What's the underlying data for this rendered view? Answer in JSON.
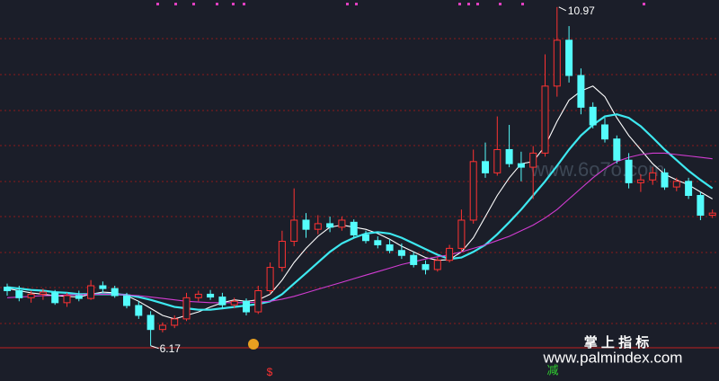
{
  "chart_data": {
    "type": "candlestick",
    "ylim": [
      5.67,
      11.07
    ],
    "up_color": "#ff3232",
    "down_color": "#54fcfc",
    "open": [
      7.0,
      6.95,
      6.85,
      6.9,
      6.92,
      6.78,
      6.88,
      6.84,
      7.02,
      6.98,
      6.88,
      6.74,
      6.6,
      6.4,
      6.46,
      6.55,
      6.85,
      6.9,
      6.86,
      6.75,
      6.8,
      6.65,
      6.95,
      7.28,
      7.65,
      7.95,
      7.82,
      7.9,
      7.85,
      7.92,
      7.74,
      7.66,
      7.6,
      7.52,
      7.45,
      7.32,
      7.25,
      7.38,
      7.55,
      7.95,
      8.78,
      8.62,
      8.95,
      8.75,
      8.7,
      8.9,
      9.85,
      10.5,
      10.0,
      9.55,
      9.3,
      9.1,
      8.8,
      8.48,
      8.52,
      8.62,
      8.42,
      8.5,
      8.3,
      8.02
    ],
    "high": [
      7.05,
      7.02,
      6.95,
      6.98,
      6.96,
      6.92,
      6.95,
      7.1,
      7.08,
      7.02,
      6.92,
      6.8,
      6.66,
      6.5,
      6.6,
      6.92,
      6.95,
      6.96,
      6.92,
      6.85,
      6.84,
      7.02,
      7.35,
      7.8,
      8.4,
      8.05,
      8.02,
      8.0,
      8.0,
      7.96,
      7.8,
      7.72,
      7.68,
      7.62,
      7.5,
      7.38,
      7.42,
      7.6,
      8.1,
      8.95,
      9.05,
      9.42,
      9.3,
      8.92,
      9.0,
      10.3,
      10.97,
      10.7,
      10.1,
      9.62,
      9.4,
      9.15,
      8.9,
      8.6,
      8.7,
      8.68,
      8.55,
      8.55,
      8.35,
      8.1
    ],
    "low": [
      6.88,
      6.8,
      6.78,
      6.82,
      6.75,
      6.72,
      6.8,
      6.82,
      6.92,
      6.85,
      6.7,
      6.55,
      6.17,
      6.36,
      6.42,
      6.52,
      6.8,
      6.82,
      6.7,
      6.7,
      6.6,
      6.62,
      6.9,
      7.22,
      7.58,
      7.7,
      7.75,
      7.78,
      7.8,
      7.7,
      7.62,
      7.55,
      7.48,
      7.4,
      7.28,
      7.18,
      7.22,
      7.35,
      7.5,
      7.9,
      8.55,
      8.58,
      8.7,
      8.5,
      8.25,
      8.85,
      9.7,
      9.9,
      9.45,
      9.25,
      9.05,
      8.75,
      8.4,
      8.35,
      8.45,
      8.38,
      8.36,
      8.25,
      7.95,
      7.98
    ],
    "close": [
      6.95,
      6.85,
      6.9,
      6.93,
      6.78,
      6.88,
      6.84,
      7.02,
      6.98,
      6.88,
      6.74,
      6.6,
      6.4,
      6.46,
      6.55,
      6.85,
      6.9,
      6.86,
      6.75,
      6.8,
      6.65,
      6.95,
      7.28,
      7.65,
      7.95,
      7.82,
      7.9,
      7.85,
      7.95,
      7.74,
      7.66,
      7.6,
      7.52,
      7.45,
      7.32,
      7.25,
      7.38,
      7.55,
      7.95,
      8.78,
      8.62,
      8.95,
      8.75,
      8.7,
      8.9,
      9.85,
      10.5,
      10.0,
      9.55,
      9.3,
      9.1,
      8.8,
      8.48,
      8.52,
      8.62,
      8.42,
      8.5,
      8.3,
      8.02,
      8.05
    ],
    "lines": [
      {
        "color": "#ffffff",
        "values": [
          6.98,
          6.95,
          6.92,
          6.9,
          6.88,
          6.87,
          6.86,
          6.9,
          6.93,
          6.92,
          6.88,
          6.8,
          6.7,
          6.6,
          6.55,
          6.6,
          6.65,
          6.72,
          6.78,
          6.82,
          6.8,
          6.82,
          6.9,
          7.1,
          7.35,
          7.55,
          7.72,
          7.85,
          7.88,
          7.85,
          7.82,
          7.76,
          7.68,
          7.58,
          7.5,
          7.42,
          7.38,
          7.39,
          7.5,
          7.7,
          8.0,
          8.3,
          8.55,
          8.75,
          8.78,
          9.0,
          9.35,
          9.65,
          9.78,
          9.85,
          9.7,
          9.4,
          9.15,
          8.95,
          8.75,
          8.6,
          8.52,
          8.45,
          8.35,
          8.25
        ]
      },
      {
        "color": "#3ee8f0",
        "values": [
          7.0,
          6.98,
          6.96,
          6.95,
          6.93,
          6.92,
          6.9,
          6.9,
          6.9,
          6.9,
          6.89,
          6.86,
          6.82,
          6.77,
          6.72,
          6.7,
          6.68,
          6.68,
          6.7,
          6.72,
          6.74,
          6.76,
          6.8,
          6.9,
          7.05,
          7.2,
          7.35,
          7.5,
          7.62,
          7.7,
          7.76,
          7.78,
          7.76,
          7.7,
          7.62,
          7.54,
          7.46,
          7.4,
          7.42,
          7.5,
          7.6,
          7.75,
          7.92,
          8.1,
          8.3,
          8.5,
          8.72,
          8.95,
          9.15,
          9.3,
          9.42,
          9.45,
          9.4,
          9.28,
          9.12,
          8.95,
          8.8,
          8.65,
          8.52,
          8.4
        ]
      },
      {
        "color": "#d23cd2",
        "values": [
          6.85,
          6.86,
          6.87,
          6.88,
          6.88,
          6.89,
          6.89,
          6.9,
          6.9,
          6.9,
          6.89,
          6.88,
          6.86,
          6.84,
          6.82,
          6.8,
          6.79,
          6.78,
          6.78,
          6.78,
          6.78,
          6.79,
          6.8,
          6.83,
          6.87,
          6.92,
          6.97,
          7.02,
          7.07,
          7.12,
          7.17,
          7.22,
          7.27,
          7.32,
          7.36,
          7.4,
          7.43,
          7.46,
          7.5,
          7.55,
          7.6,
          7.66,
          7.72,
          7.8,
          7.88,
          7.98,
          8.1,
          8.25,
          8.4,
          8.55,
          8.68,
          8.78,
          8.84,
          8.88,
          8.9,
          8.9,
          8.88,
          8.86,
          8.84,
          8.82
        ]
      }
    ],
    "signal_buy": "$",
    "signal_sell": "减",
    "watermark": "www.6o7o.com",
    "brand": "掌 上 指 标",
    "site": "www.palmindex.com"
  }
}
